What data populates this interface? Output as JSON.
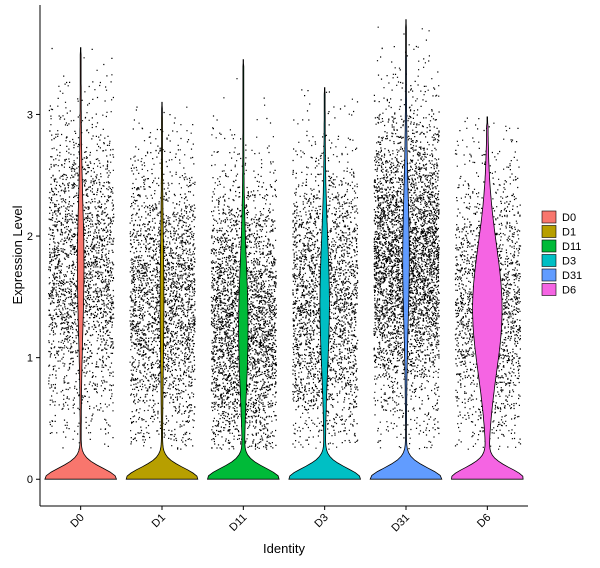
{
  "chart_data": {
    "type": "violin",
    "xlabel": "Identity",
    "ylabel": "Expression Level",
    "ylim": [
      -0.22,
      3.9
    ],
    "yticks": [
      0,
      1,
      2,
      3
    ],
    "grid": false,
    "legend_position": "right",
    "categories": [
      "D0",
      "D1",
      "D11",
      "D3",
      "D31",
      "D6"
    ],
    "series": [
      {
        "name": "D0",
        "color": "#F8766D",
        "max": 3.55,
        "median": 1.75,
        "zero_fraction": 0.45,
        "density": 0.55,
        "violin_upper_width": 0.08
      },
      {
        "name": "D1",
        "color": "#B79F00",
        "max": 3.1,
        "median": 1.45,
        "zero_fraction": 0.55,
        "density": 0.6,
        "violin_upper_width": 0.04
      },
      {
        "name": "D11",
        "color": "#00BA38",
        "max": 3.45,
        "median": 1.25,
        "zero_fraction": 0.45,
        "density": 0.75,
        "violin_upper_width": 0.12
      },
      {
        "name": "D3",
        "color": "#00BFC4",
        "max": 3.22,
        "median": 1.45,
        "zero_fraction": 0.55,
        "density": 0.6,
        "violin_upper_width": 0.12
      },
      {
        "name": "D31",
        "color": "#619CFF",
        "max": 3.78,
        "median": 1.8,
        "zero_fraction": 0.4,
        "density": 1.0,
        "violin_upper_width": 0.08
      },
      {
        "name": "D6",
        "color": "#F564E3",
        "max": 2.98,
        "median": 1.4,
        "zero_fraction": 0.5,
        "density": 0.45,
        "violin_upper_width": 0.4
      }
    ]
  }
}
